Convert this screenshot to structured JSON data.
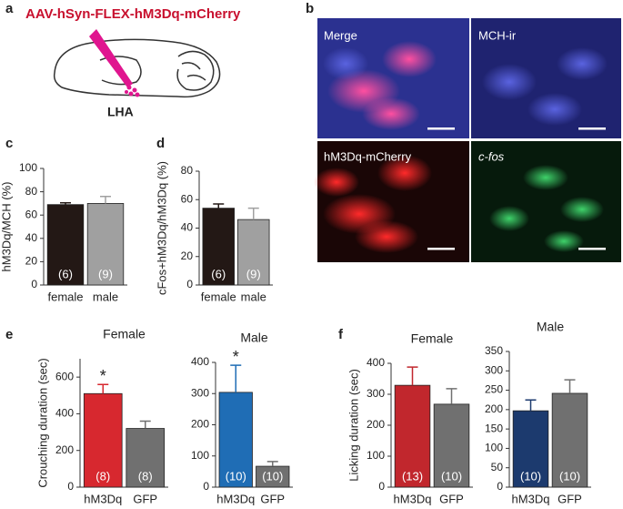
{
  "panel_labels": [
    "a",
    "b",
    "c",
    "d",
    "e",
    "f"
  ],
  "diagram": {
    "title": "AAV-hSyn-FLEX-hM3Dq-mCherry",
    "region": "LHA"
  },
  "images": {
    "labels": [
      "Merge",
      "MCH-ir",
      "hM3Dq-mCherry",
      "c-fos"
    ]
  },
  "chart_data": [
    {
      "type": "bar",
      "ylabel": "hM3Dq/MCH (%)",
      "categories": [
        "female",
        "male"
      ],
      "values": [
        69,
        70
      ],
      "errors": [
        1.5,
        6
      ],
      "n_labels": [
        "(6)",
        "(9)"
      ],
      "colors": [
        "#231815",
        "#a0a0a0"
      ],
      "ylim": [
        0,
        100
      ],
      "yticks": [
        0,
        20,
        40,
        60,
        80,
        100
      ]
    },
    {
      "type": "bar",
      "ylabel": "cFos+hM3Dq/hM3Dq (%)",
      "categories": [
        "female",
        "male"
      ],
      "values": [
        54,
        46
      ],
      "errors": [
        3,
        8
      ],
      "n_labels": [
        "(6)",
        "(9)"
      ],
      "colors": [
        "#231815",
        "#a0a0a0"
      ],
      "ylim": [
        0,
        80
      ],
      "yticks": [
        0,
        20,
        40,
        60,
        80
      ]
    },
    {
      "type": "bar",
      "title": "Female",
      "ylabel": "Crouching duration (sec)",
      "categories": [
        "hM3Dq",
        "GFP"
      ],
      "values": [
        510,
        320
      ],
      "errors": [
        50,
        40
      ],
      "n_labels": [
        "(8)",
        "(8)"
      ],
      "significance": [
        "*",
        null
      ],
      "colors": [
        "#d7282f",
        "#707070"
      ],
      "ylim": [
        0,
        700
      ],
      "yticks": [
        0,
        200,
        400,
        600
      ]
    },
    {
      "type": "bar",
      "title": "Male",
      "categories": [
        "hM3Dq",
        "GFP"
      ],
      "values": [
        304,
        67
      ],
      "errors": [
        87,
        15
      ],
      "n_labels": [
        "(10)",
        "(10)"
      ],
      "significance": [
        "*",
        null
      ],
      "colors": [
        "#1f6db5",
        "#707070"
      ],
      "ylim": [
        0,
        400
      ],
      "yticks": [
        0,
        100,
        200,
        300,
        400
      ]
    },
    {
      "type": "bar",
      "title": "Female",
      "ylabel": "Licking duration (sec)",
      "categories": [
        "hM3Dq",
        "GFP"
      ],
      "values": [
        329,
        268
      ],
      "errors": [
        59,
        50
      ],
      "n_labels": [
        "(13)",
        "(10)"
      ],
      "colors": [
        "#c1272d",
        "#707070"
      ],
      "ylim": [
        0,
        400
      ],
      "yticks": [
        0,
        100,
        200,
        300,
        400
      ]
    },
    {
      "type": "bar",
      "title": "Male",
      "categories": [
        "hM3Dq",
        "GFP"
      ],
      "values": [
        197,
        242
      ],
      "errors": [
        28,
        35
      ],
      "n_labels": [
        "(10)",
        "(10)"
      ],
      "colors": [
        "#1c3a6e",
        "#707070"
      ],
      "ylim": [
        0,
        350
      ],
      "yticks": [
        0,
        50,
        100,
        150,
        200,
        250,
        300,
        350
      ]
    }
  ]
}
